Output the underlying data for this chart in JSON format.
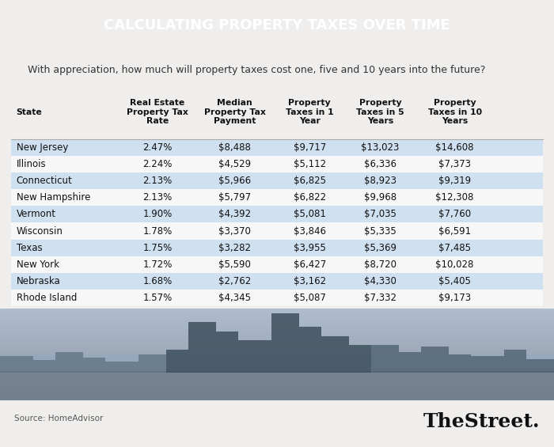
{
  "title": "CALCULATING PROPERTY TAXES OVER TIME",
  "subtitle": "With appreciation, how much will property taxes cost one, five and 10 years into the future?",
  "col_headers": [
    "State",
    "Real Estate\nProperty Tax\nRate",
    "Median\nProperty Tax\nPayment",
    "Property\nTaxes in 1\nYear",
    "Property\nTaxes in 5\nYears",
    "Property\nTaxes in 10\nYears"
  ],
  "rows": [
    [
      "New Jersey",
      "2.47%",
      "$8,488",
      "$9,717",
      "$13,023",
      "$14,608"
    ],
    [
      "Illinois",
      "2.24%",
      "$4,529",
      "$5,112",
      "$6,336",
      "$7,373"
    ],
    [
      "Connecticut",
      "2.13%",
      "$5,966",
      "$6,825",
      "$8,923",
      "$9,319"
    ],
    [
      "New Hampshire",
      "2.13%",
      "$5,797",
      "$6,822",
      "$9,968",
      "$12,308"
    ],
    [
      "Vermont",
      "1.90%",
      "$4,392",
      "$5,081",
      "$7,035",
      "$7,760"
    ],
    [
      "Wisconsin",
      "1.78%",
      "$3,370",
      "$3,846",
      "$5,335",
      "$6,591"
    ],
    [
      "Texas",
      "1.75%",
      "$3,282",
      "$3,955",
      "$5,369",
      "$7,485"
    ],
    [
      "New York",
      "1.72%",
      "$5,590",
      "$6,427",
      "$8,720",
      "$10,028"
    ],
    [
      "Nebraska",
      "1.68%",
      "$2,762",
      "$3,162",
      "$4,330",
      "$5,405"
    ],
    [
      "Rhode Island",
      "1.57%",
      "$4,345",
      "$5,087",
      "$7,332",
      "$9,173"
    ]
  ],
  "shaded_rows": [
    0,
    2,
    4,
    6,
    8
  ],
  "row_shade_color": "#cfe0f0",
  "row_plain_color": "#f7f7f7",
  "header_bg": "#111111",
  "header_text_color": "#ffffff",
  "title_fontsize": 13,
  "subtitle_fontsize": 9,
  "col_header_fontsize": 7.8,
  "cell_fontsize": 8.5,
  "source_text": "Source: HomeAdvisor",
  "brand_text": "TheStreet.",
  "fig_bg": "#f0eeec"
}
